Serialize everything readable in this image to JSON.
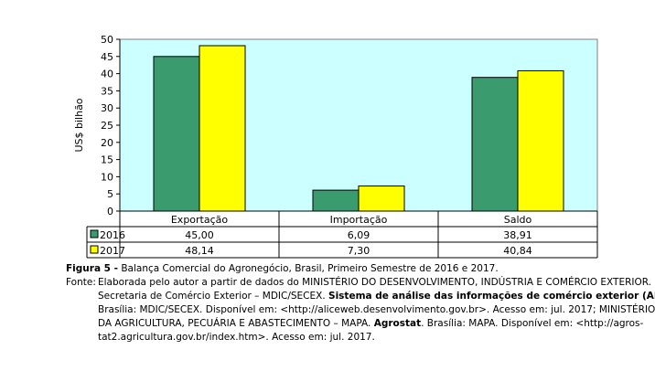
{
  "chart_data": {
    "type": "bar",
    "ylabel": "US$ bilhão",
    "ylim": [
      0,
      50
    ],
    "yticks": [
      0,
      5,
      10,
      15,
      20,
      25,
      30,
      35,
      40,
      45,
      50
    ],
    "grid": false,
    "categories": [
      "Exportação",
      "Importação",
      "Saldo"
    ],
    "series": [
      {
        "name": "2016",
        "color": "#3a9b6e",
        "values": [
          45.0,
          6.09,
          38.91
        ],
        "labels": [
          "45,00",
          "6,09",
          "38,91"
        ]
      },
      {
        "name": "2017",
        "color": "#ffff00",
        "values": [
          48.14,
          7.3,
          40.84
        ],
        "labels": [
          "48,14",
          "7,30",
          "40,84"
        ]
      }
    ],
    "plot_background": "#ccffff"
  },
  "caption": {
    "figure_label": "Figura 5 -",
    "figure_text": " Balança Comercial do Agronegócio, Brasil, Primeiro Semestre de 2016 e 2017.",
    "source_label": "Fonte:",
    "source_line1": "Elaborada pelo autor a partir de dados do MINISTÉRIO DO DESENVOLVIMENTO, INDÚSTRIA E COMÉRCIO EXTERIOR.",
    "source_line2_a": "Secretaria de Comércio Exterior – MDIC/SECEX. ",
    "source_line2_b": "Sistema de análise das informações de comércio exterior (ALICE)",
    "source_line3": "Brasília: MDIC/SECEX. Disponível em: <http://aliceweb.desenvolvimento.gov.br>. Acesso em: jul. 2017; MINISTÉRIO",
    "source_line4_a": "DA AGRICULTURA, PECUÁRIA E ABASTECIMENTO – MAPA. ",
    "source_line4_b": "Agrostat",
    "source_line4_c": ". Brasília: MAPA. Disponível em: <http://agros-",
    "source_line5": "tat2.agricultura.gov.br/index.htm>. Acesso em: jul. 2017."
  }
}
